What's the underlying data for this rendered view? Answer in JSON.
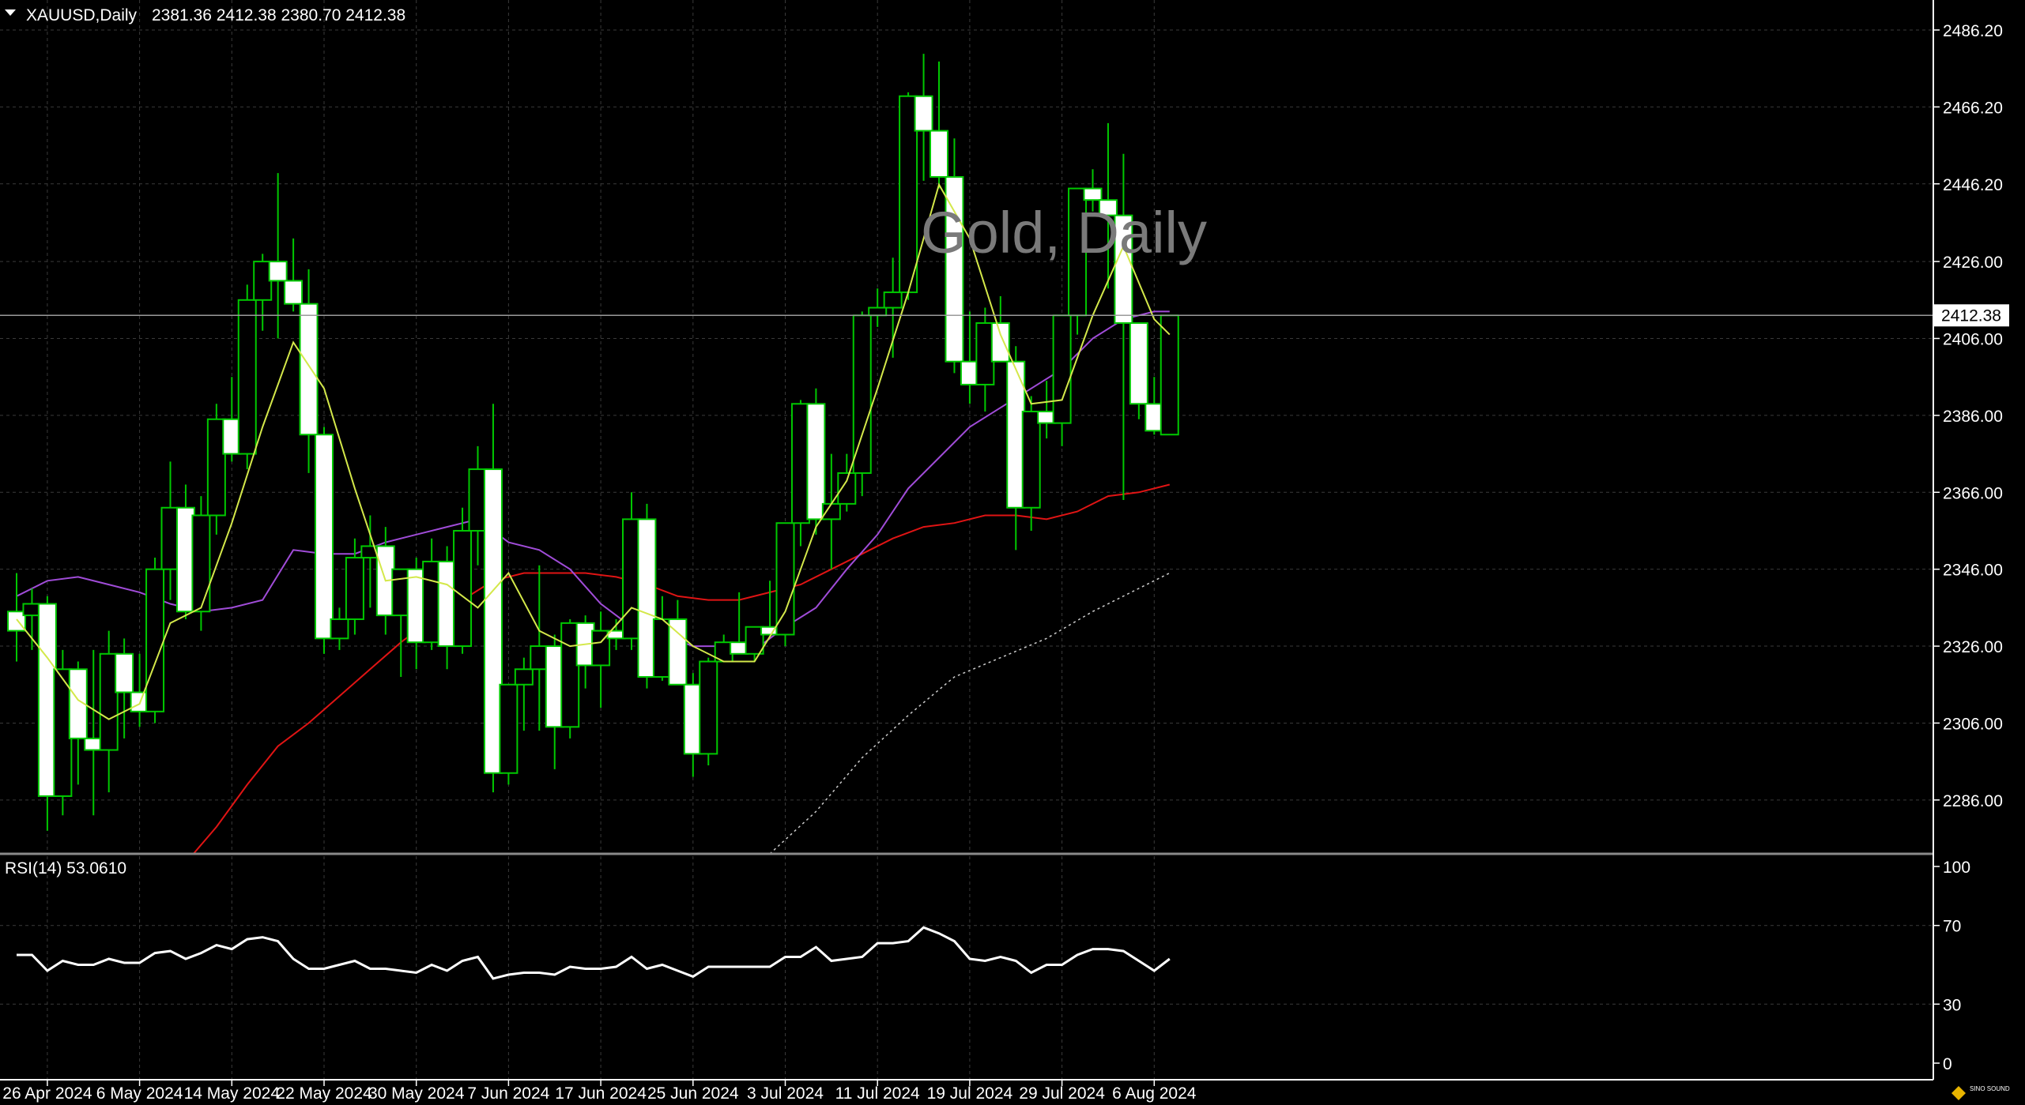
{
  "header": {
    "symbol_timeframe": "XAUUSD,Daily",
    "ohlc": "2381.36 2412.38 2380.70 2412.38",
    "menu_icon": "triangle-down-icon"
  },
  "watermark": "Gold, Daily",
  "last_price_label": "2412.38",
  "rsi_label": "RSI(14) 53.0610",
  "brand_logo_text": "SINO SOUND",
  "colors": {
    "background": "#000000",
    "grid": "#3a3a3a",
    "bull_candle_outline": "#00c800",
    "bear_candle_fill": "#ffffff",
    "ma_fast": "#d4e84a",
    "ma_mid": "#a04cd8",
    "ma_slow": "#e01414",
    "ma_long": "#cccccc",
    "rsi_line": "#ffffff",
    "text": "#ffffff",
    "watermark": "#7a7a7a"
  },
  "chart_data": [
    {
      "type": "candlestick",
      "title": "Gold, Daily",
      "symbol": "XAUUSD",
      "y_ticks": [
        "2286.00",
        "2306.00",
        "2326.00",
        "2346.00",
        "2366.00",
        "2386.00",
        "2406.00",
        "2426.00",
        "2446.20",
        "2466.20",
        "2486.20"
      ],
      "x_ticks": [
        {
          "label": "26 Apr 2024",
          "index": 2
        },
        {
          "label": "6 May 2024",
          "index": 8
        },
        {
          "label": "14 May 2024",
          "index": 14
        },
        {
          "label": "22 May 2024",
          "index": 20
        },
        {
          "label": "30 May 2024",
          "index": 26
        },
        {
          "label": "7 Jun 2024",
          "index": 32
        },
        {
          "label": "17 Jun 2024",
          "index": 38
        },
        {
          "label": "25 Jun 2024",
          "index": 44
        },
        {
          "label": "3 Jul 2024",
          "index": 50
        },
        {
          "label": "11 Jul 2024",
          "index": 56
        },
        {
          "label": "19 Jul 2024",
          "index": 62
        },
        {
          "label": "29 Jul 2024",
          "index": 68
        },
        {
          "label": "6 Aug 2024",
          "index": 74
        }
      ],
      "ylim": [
        2272,
        2494
      ],
      "grid": true,
      "candles": [
        [
          2335,
          2345,
          2322,
          2330
        ],
        [
          2334,
          2341,
          2325,
          2337
        ],
        [
          2337,
          2339,
          2278,
          2287
        ],
        [
          2287,
          2325,
          2282,
          2320
        ],
        [
          2320,
          2322,
          2290,
          2302
        ],
        [
          2302,
          2325,
          2282,
          2299
        ],
        [
          2299,
          2330,
          2288,
          2324
        ],
        [
          2324,
          2328,
          2302,
          2314
        ],
        [
          2314,
          2324,
          2305,
          2309
        ],
        [
          2309,
          2349,
          2306,
          2346
        ],
        [
          2346,
          2374,
          2338,
          2362
        ],
        [
          2362,
          2368,
          2333,
          2335
        ],
        [
          2335,
          2365,
          2330,
          2360
        ],
        [
          2360,
          2389,
          2355,
          2385
        ],
        [
          2385,
          2396,
          2374,
          2376
        ],
        [
          2376,
          2420,
          2372,
          2416
        ],
        [
          2416,
          2428,
          2408,
          2426
        ],
        [
          2426,
          2449,
          2406,
          2421
        ],
        [
          2421,
          2432,
          2413,
          2415
        ],
        [
          2415,
          2424,
          2371,
          2381
        ],
        [
          2381,
          2383,
          2324,
          2328
        ],
        [
          2328,
          2336,
          2325,
          2333
        ],
        [
          2333,
          2354,
          2329,
          2349
        ],
        [
          2349,
          2360,
          2336,
          2352
        ],
        [
          2352,
          2357,
          2329,
          2334
        ],
        [
          2334,
          2345,
          2318,
          2346
        ],
        [
          2346,
          2349,
          2320,
          2327
        ],
        [
          2327,
          2354,
          2325,
          2348
        ],
        [
          2348,
          2352,
          2320,
          2326
        ],
        [
          2326,
          2362,
          2324,
          2356
        ],
        [
          2356,
          2378,
          2347,
          2372
        ],
        [
          2372,
          2389,
          2288,
          2293
        ],
        [
          2293,
          2315,
          2290,
          2316
        ],
        [
          2316,
          2323,
          2304,
          2320
        ],
        [
          2320,
          2347,
          2304,
          2326
        ],
        [
          2326,
          2329,
          2294,
          2305
        ],
        [
          2305,
          2333,
          2302,
          2332
        ],
        [
          2332,
          2334,
          2315,
          2321
        ],
        [
          2321,
          2335,
          2310,
          2330
        ],
        [
          2330,
          2333,
          2325,
          2328
        ],
        [
          2328,
          2366,
          2325,
          2359
        ],
        [
          2359,
          2363,
          2315,
          2318
        ],
        [
          2318,
          2339,
          2317,
          2333
        ],
        [
          2333,
          2338,
          2316,
          2316
        ],
        [
          2316,
          2319,
          2292,
          2298
        ],
        [
          2298,
          2323,
          2295,
          2322
        ],
        [
          2322,
          2329,
          2323,
          2327
        ],
        [
          2327,
          2340,
          2324,
          2324
        ],
        [
          2324,
          2331,
          2322,
          2331
        ],
        [
          2331,
          2343,
          2329,
          2329
        ],
        [
          2329,
          2358,
          2326,
          2358
        ],
        [
          2358,
          2390,
          2352,
          2389
        ],
        [
          2389,
          2393,
          2355,
          2359
        ],
        [
          2359,
          2376,
          2346,
          2363
        ],
        [
          2363,
          2376,
          2361,
          2371
        ],
        [
          2371,
          2413,
          2365,
          2412
        ],
        [
          2412,
          2419,
          2409,
          2414
        ],
        [
          2414,
          2427,
          2401,
          2418
        ],
        [
          2418,
          2470,
          2416,
          2469
        ],
        [
          2469,
          2480,
          2447,
          2460
        ],
        [
          2460,
          2478,
          2445,
          2448
        ],
        [
          2448,
          2458,
          2397,
          2400
        ],
        [
          2400,
          2413,
          2389,
          2394
        ],
        [
          2394,
          2414,
          2387,
          2410
        ],
        [
          2410,
          2417,
          2401,
          2400
        ],
        [
          2400,
          2404,
          2351,
          2362
        ],
        [
          2362,
          2391,
          2356,
          2387
        ],
        [
          2387,
          2395,
          2380,
          2384
        ],
        [
          2384,
          2412,
          2378,
          2412
        ],
        [
          2412,
          2445,
          2407,
          2445
        ],
        [
          2445,
          2450,
          2439,
          2442
        ],
        [
          2442,
          2462,
          2419,
          2438
        ],
        [
          2438,
          2454,
          2364,
          2410
        ],
        [
          2410,
          2410,
          2385,
          2389
        ],
        [
          2389,
          2396,
          2381,
          2382
        ],
        [
          2381,
          2412,
          2381,
          2412
        ]
      ],
      "moving_averages": [
        {
          "name": "fast",
          "color": "#d4e84a",
          "values": [
            [
              0,
              2333
            ],
            [
              2,
              2323
            ],
            [
              4,
              2312
            ],
            [
              6,
              2307
            ],
            [
              8,
              2311
            ],
            [
              10,
              2332
            ],
            [
              12,
              2336
            ],
            [
              14,
              2358
            ],
            [
              16,
              2383
            ],
            [
              18,
              2405
            ],
            [
              20,
              2393
            ],
            [
              22,
              2367
            ],
            [
              24,
              2343
            ],
            [
              26,
              2344
            ],
            [
              28,
              2342
            ],
            [
              30,
              2336
            ],
            [
              32,
              2345
            ],
            [
              34,
              2330
            ],
            [
              36,
              2326
            ],
            [
              38,
              2327
            ],
            [
              40,
              2336
            ],
            [
              42,
              2333
            ],
            [
              44,
              2326
            ],
            [
              46,
              2322
            ],
            [
              48,
              2322
            ],
            [
              50,
              2335
            ],
            [
              52,
              2357
            ],
            [
              54,
              2369
            ],
            [
              56,
              2393
            ],
            [
              58,
              2418
            ],
            [
              60,
              2446
            ],
            [
              62,
              2432
            ],
            [
              64,
              2407
            ],
            [
              66,
              2389
            ],
            [
              68,
              2390
            ],
            [
              70,
              2412
            ],
            [
              72,
              2430
            ],
            [
              74,
              2411
            ],
            [
              75,
              2407
            ]
          ]
        },
        {
          "name": "mid",
          "color": "#a04cd8",
          "values": [
            [
              0,
              2339
            ],
            [
              2,
              2343
            ],
            [
              4,
              2344
            ],
            [
              6,
              2342
            ],
            [
              8,
              2340
            ],
            [
              10,
              2337
            ],
            [
              12,
              2335
            ],
            [
              14,
              2336
            ],
            [
              16,
              2338
            ],
            [
              18,
              2351
            ],
            [
              20,
              2350
            ],
            [
              22,
              2350
            ],
            [
              24,
              2353
            ],
            [
              26,
              2355
            ],
            [
              28,
              2357
            ],
            [
              30,
              2359
            ],
            [
              32,
              2353
            ],
            [
              34,
              2351
            ],
            [
              36,
              2346
            ],
            [
              38,
              2337
            ],
            [
              40,
              2331
            ],
            [
              42,
              2329
            ],
            [
              44,
              2326
            ],
            [
              46,
              2326
            ],
            [
              48,
              2325
            ],
            [
              50,
              2331
            ],
            [
              52,
              2336
            ],
            [
              54,
              2346
            ],
            [
              56,
              2355
            ],
            [
              58,
              2367
            ],
            [
              60,
              2375
            ],
            [
              62,
              2383
            ],
            [
              64,
              2388
            ],
            [
              66,
              2393
            ],
            [
              68,
              2398
            ],
            [
              70,
              2406
            ],
            [
              72,
              2411
            ],
            [
              74,
              2413
            ],
            [
              75,
              2413
            ]
          ]
        },
        {
          "name": "slow",
          "color": "#e01414",
          "values": [
            [
              11.5,
              2272
            ],
            [
              13,
              2279
            ],
            [
              15,
              2290
            ],
            [
              17,
              2300
            ],
            [
              19,
              2306
            ],
            [
              21,
              2313
            ],
            [
              23,
              2320
            ],
            [
              25,
              2327
            ],
            [
              27,
              2333
            ],
            [
              29,
              2338
            ],
            [
              31,
              2343
            ],
            [
              33,
              2345
            ],
            [
              35,
              2345
            ],
            [
              37,
              2345
            ],
            [
              39,
              2344
            ],
            [
              41,
              2342
            ],
            [
              43,
              2339
            ],
            [
              45,
              2338
            ],
            [
              47,
              2338
            ],
            [
              49,
              2340
            ],
            [
              51,
              2342
            ],
            [
              53,
              2346
            ],
            [
              55,
              2350
            ],
            [
              57,
              2354
            ],
            [
              59,
              2357
            ],
            [
              61,
              2358
            ],
            [
              63,
              2360
            ],
            [
              65,
              2360
            ],
            [
              67,
              2359
            ],
            [
              69,
              2361
            ],
            [
              71,
              2365
            ],
            [
              73,
              2366
            ],
            [
              75,
              2368
            ]
          ]
        },
        {
          "name": "long",
          "color": "#cccccc",
          "dashed": true,
          "values": [
            [
              49,
              2272
            ],
            [
              52,
              2283
            ],
            [
              55,
              2297
            ],
            [
              58,
              2308
            ],
            [
              61,
              2318
            ],
            [
              64,
              2323
            ],
            [
              67,
              2328
            ],
            [
              70,
              2335
            ],
            [
              73,
              2341
            ],
            [
              75,
              2345
            ]
          ]
        }
      ]
    },
    {
      "type": "line",
      "title": "RSI(14) 53.0610",
      "y_ticks": [
        "0",
        "30",
        "70",
        "100"
      ],
      "ylim": [
        0,
        100
      ],
      "series": [
        {
          "name": "RSI(14)",
          "values": [
            55,
            55,
            47,
            52,
            50,
            50,
            53,
            51,
            51,
            56,
            57,
            53,
            56,
            60,
            58,
            63,
            64,
            62,
            53,
            48,
            48,
            50,
            52,
            48,
            48,
            47,
            46,
            50,
            47,
            52,
            54,
            43,
            45,
            46,
            46,
            45,
            49,
            48,
            48,
            49,
            54,
            48,
            50,
            47,
            44,
            49,
            49,
            49,
            49,
            49,
            54,
            54,
            59,
            52,
            53,
            54,
            61,
            61,
            62,
            69,
            66,
            62,
            53,
            52,
            54,
            52,
            46,
            50,
            50,
            55,
            58,
            58,
            57,
            52,
            47,
            53
          ]
        }
      ]
    }
  ]
}
